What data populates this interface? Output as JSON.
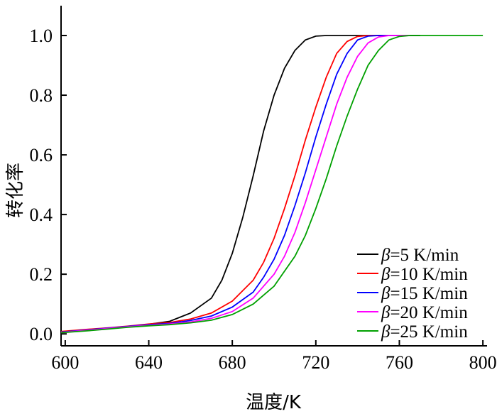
{
  "chart_data": {
    "type": "line",
    "xlabel": "温度/K",
    "ylabel": "转化率",
    "xlim": [
      598,
      802
    ],
    "ylim": [
      -0.04,
      1.1
    ],
    "xticks": [
      "600",
      "640",
      "680",
      "720",
      "760",
      "800"
    ],
    "yticks": [
      "0.0",
      "0.2",
      "0.4",
      "0.6",
      "0.8",
      "1.0"
    ],
    "legend_position": "lower-right",
    "series": [
      {
        "name": "β=5 K/min",
        "symbol": "β",
        "label": "=5 K/min",
        "color": "#000000",
        "x": [
          598,
          610,
          620,
          630,
          640,
          650,
          660,
          670,
          675,
          680,
          685,
          690,
          695,
          700,
          705,
          710,
          715,
          720,
          725,
          730,
          740,
          750,
          770
        ],
        "y": [
          0.005,
          0.012,
          0.018,
          0.024,
          0.032,
          0.042,
          0.07,
          0.12,
          0.18,
          0.27,
          0.39,
          0.53,
          0.68,
          0.8,
          0.89,
          0.95,
          0.985,
          0.998,
          1.0,
          1.0,
          1.0,
          1.0,
          1.0
        ]
      },
      {
        "name": "β=10 K/min",
        "symbol": "β",
        "label": "=10 K/min",
        "color": "#ff0000",
        "x": [
          598,
          610,
          620,
          630,
          640,
          650,
          660,
          670,
          680,
          690,
          695,
          700,
          705,
          710,
          715,
          720,
          725,
          730,
          735,
          740,
          745,
          750,
          760
        ],
        "y": [
          0.008,
          0.015,
          0.02,
          0.026,
          0.033,
          0.038,
          0.05,
          0.07,
          0.11,
          0.18,
          0.24,
          0.32,
          0.42,
          0.53,
          0.65,
          0.76,
          0.86,
          0.94,
          0.98,
          0.997,
          1.0,
          1.0,
          1.0
        ]
      },
      {
        "name": "β=15 K/min",
        "symbol": "β",
        "label": "=15 K/min",
        "color": "#0000ff",
        "x": [
          598,
          610,
          620,
          630,
          640,
          650,
          660,
          670,
          680,
          690,
          695,
          700,
          705,
          710,
          715,
          720,
          725,
          730,
          735,
          740,
          745,
          750,
          760
        ],
        "y": [
          0.006,
          0.013,
          0.019,
          0.025,
          0.031,
          0.035,
          0.045,
          0.06,
          0.09,
          0.14,
          0.19,
          0.25,
          0.33,
          0.43,
          0.54,
          0.66,
          0.77,
          0.87,
          0.94,
          0.985,
          0.998,
          1.0,
          1.0
        ]
      },
      {
        "name": "β=20 K/min",
        "symbol": "β",
        "label": "=20 K/min",
        "color": "#ff00ff",
        "x": [
          598,
          610,
          620,
          630,
          640,
          650,
          660,
          670,
          680,
          690,
          700,
          705,
          710,
          715,
          720,
          725,
          730,
          735,
          740,
          745,
          750,
          755,
          765
        ],
        "y": [
          0.005,
          0.012,
          0.018,
          0.024,
          0.029,
          0.033,
          0.04,
          0.052,
          0.075,
          0.12,
          0.2,
          0.26,
          0.34,
          0.44,
          0.55,
          0.66,
          0.77,
          0.86,
          0.93,
          0.975,
          0.995,
          1.0,
          1.0
        ]
      },
      {
        "name": "β=25 K/min",
        "symbol": "β",
        "label": "=25 K/min",
        "color": "#00a000",
        "x": [
          598,
          610,
          620,
          630,
          640,
          650,
          660,
          670,
          680,
          690,
          700,
          710,
          715,
          720,
          725,
          730,
          735,
          740,
          745,
          750,
          755,
          760,
          765,
          770,
          800
        ],
        "y": [
          0.004,
          0.01,
          0.016,
          0.022,
          0.027,
          0.031,
          0.037,
          0.046,
          0.065,
          0.1,
          0.16,
          0.26,
          0.33,
          0.42,
          0.52,
          0.63,
          0.73,
          0.82,
          0.9,
          0.95,
          0.985,
          0.997,
          1.0,
          1.0,
          1.0
        ]
      }
    ]
  }
}
